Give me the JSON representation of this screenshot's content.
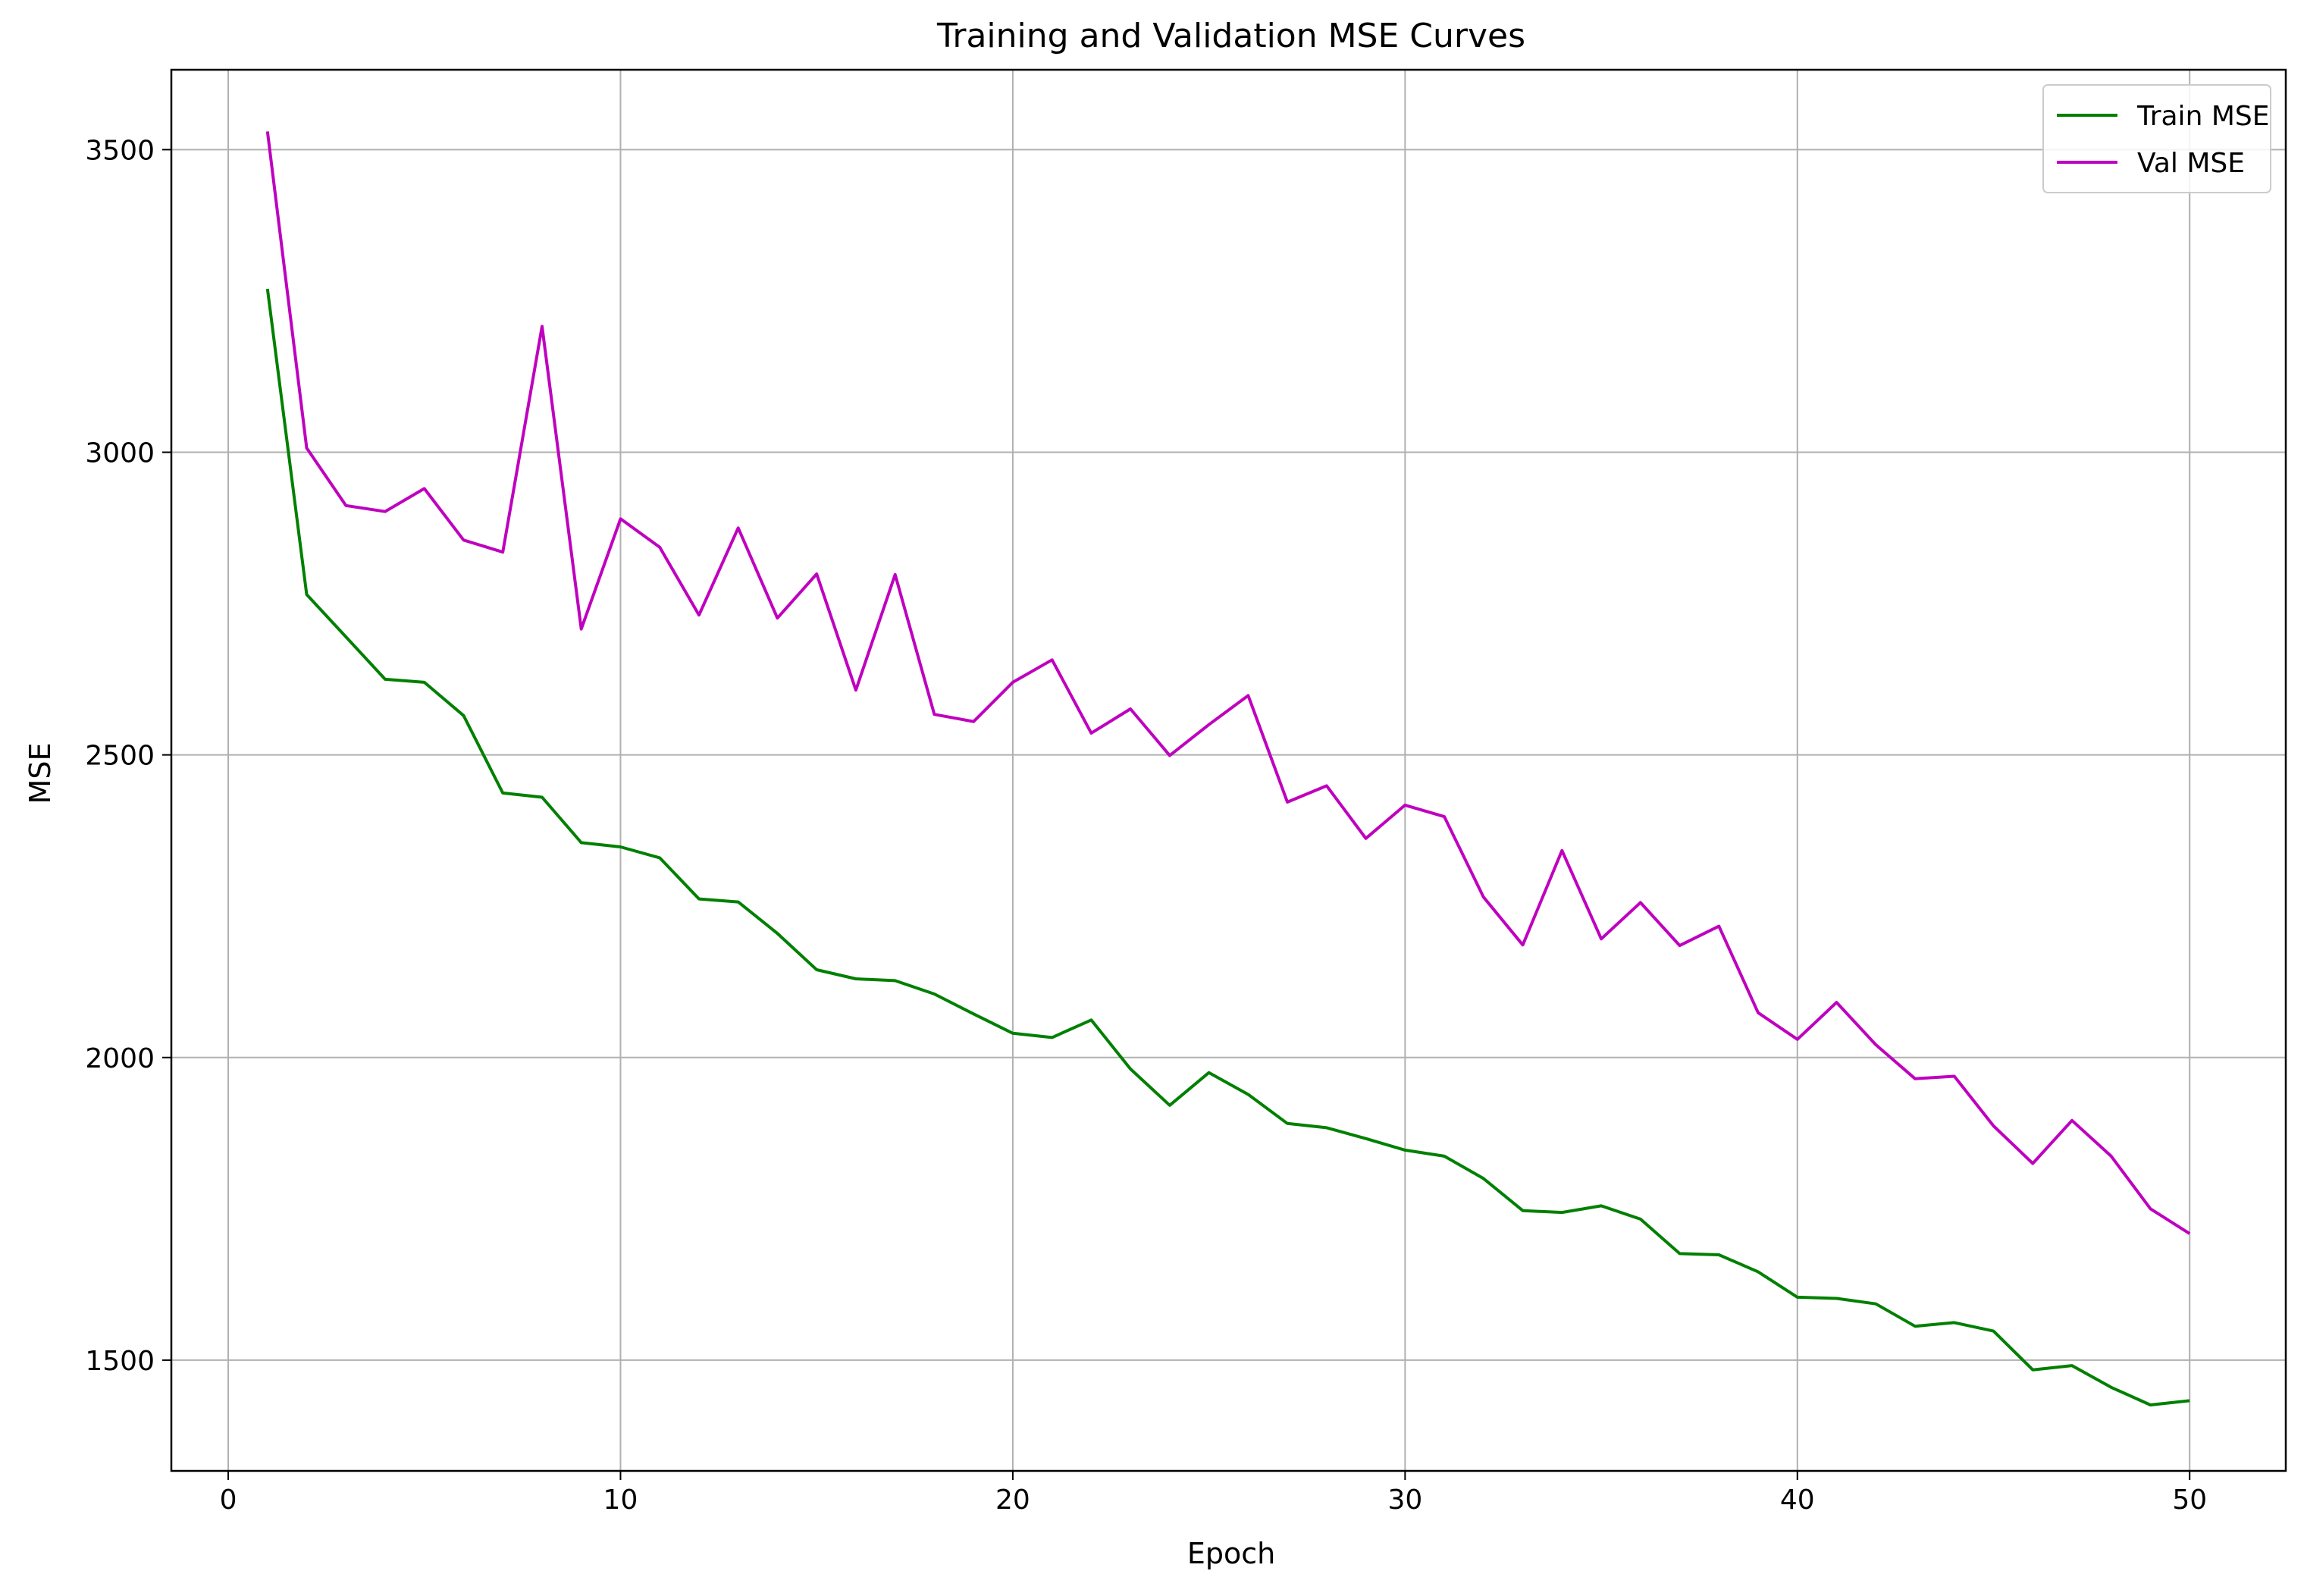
{
  "chart_data": {
    "type": "line",
    "title": "Training and Validation MSE Curves",
    "xlabel": "Epoch",
    "ylabel": "MSE",
    "xlim": [
      -1.45,
      52.45
    ],
    "ylim": [
      1317,
      3632
    ],
    "xticks": [
      0,
      10,
      20,
      30,
      40,
      50
    ],
    "xtick_labels": [
      "0",
      "10",
      "20",
      "30",
      "40",
      "50"
    ],
    "yticks": [
      1500,
      2000,
      2500,
      3000,
      3500
    ],
    "ytick_labels": [
      "1500",
      "2000",
      "2500",
      "3000",
      "3500"
    ],
    "grid": true,
    "legend_position": "upper right",
    "x": [
      1,
      2,
      3,
      4,
      5,
      6,
      7,
      8,
      9,
      10,
      11,
      12,
      13,
      14,
      15,
      16,
      17,
      18,
      19,
      20,
      21,
      22,
      23,
      24,
      25,
      26,
      27,
      28,
      29,
      30,
      31,
      32,
      33,
      34,
      35,
      36,
      37,
      38,
      39,
      40,
      41,
      42,
      43,
      44,
      45,
      46,
      47,
      48,
      49,
      50
    ],
    "series": [
      {
        "name": "Train MSE",
        "color": "#008000",
        "values": [
          3270,
          2765,
          2695,
          2625,
          2620,
          2565,
          2437,
          2430,
          2355,
          2348,
          2330,
          2262,
          2257,
          2205,
          2145,
          2130,
          2127,
          2105,
          2072,
          2040,
          2033,
          2062,
          1981,
          1921,
          1975,
          1939,
          1891,
          1884,
          1866,
          1847,
          1837,
          1800,
          1747,
          1744,
          1755,
          1733,
          1676,
          1674,
          1646,
          1604,
          1602,
          1593,
          1556,
          1562,
          1548,
          1484,
          1491,
          1455,
          1426,
          1433
        ]
      },
      {
        "name": "Val MSE",
        "color": "#bf00bf",
        "values": [
          3530,
          3007,
          2912,
          2902,
          2940,
          2855,
          2835,
          3208,
          2708,
          2890,
          2843,
          2731,
          2875,
          2726,
          2799,
          2607,
          2798,
          2567,
          2555,
          2620,
          2657,
          2536,
          2576,
          2499,
          2550,
          2598,
          2422,
          2449,
          2362,
          2417,
          2398,
          2265,
          2186,
          2342,
          2196,
          2256,
          2185,
          2217,
          2074,
          2030,
          2091,
          2021,
          1965,
          1969,
          1887,
          1825,
          1896,
          1837,
          1750,
          1709
        ]
      }
    ]
  }
}
